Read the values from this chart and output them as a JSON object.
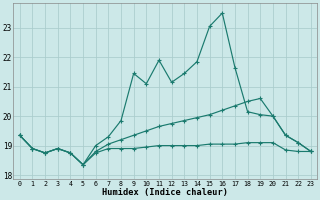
{
  "xlabel": "Humidex (Indice chaleur)",
  "x_values": [
    0,
    1,
    2,
    3,
    4,
    5,
    6,
    7,
    8,
    9,
    10,
    11,
    12,
    13,
    14,
    15,
    16,
    17,
    18,
    19,
    20,
    21,
    22,
    23
  ],
  "line_jagged_y": [
    19.35,
    18.9,
    18.75,
    18.9,
    18.75,
    18.35,
    19.0,
    19.3,
    19.85,
    21.45,
    21.1,
    21.9,
    21.15,
    21.45,
    21.85,
    23.05,
    23.5,
    21.65,
    20.15,
    20.05,
    20.0,
    19.35,
    19.1,
    18.8
  ],
  "line_slope_y": [
    19.35,
    18.9,
    18.75,
    18.9,
    18.75,
    18.35,
    18.8,
    19.05,
    19.2,
    19.35,
    19.5,
    19.65,
    19.75,
    19.85,
    19.95,
    20.05,
    20.2,
    20.35,
    20.5,
    20.6,
    20.0,
    19.35,
    19.1,
    18.8
  ],
  "line_flat_y": [
    19.35,
    18.9,
    18.75,
    18.9,
    18.75,
    18.35,
    18.75,
    18.9,
    18.9,
    18.9,
    18.95,
    19.0,
    19.0,
    19.0,
    19.0,
    19.05,
    19.05,
    19.05,
    19.1,
    19.1,
    19.1,
    18.85,
    18.8,
    18.8
  ],
  "bg_color": "#cce8e8",
  "grid_color": "#aacccc",
  "line_color": "#1a7a6e",
  "ylim_min": 17.85,
  "ylim_max": 23.85,
  "yticks": [
    18,
    19,
    20,
    21,
    22,
    23
  ],
  "xticks": [
    0,
    1,
    2,
    3,
    4,
    5,
    6,
    7,
    8,
    9,
    10,
    11,
    12,
    13,
    14,
    15,
    16,
    17,
    18,
    19,
    20,
    21,
    22,
    23
  ]
}
